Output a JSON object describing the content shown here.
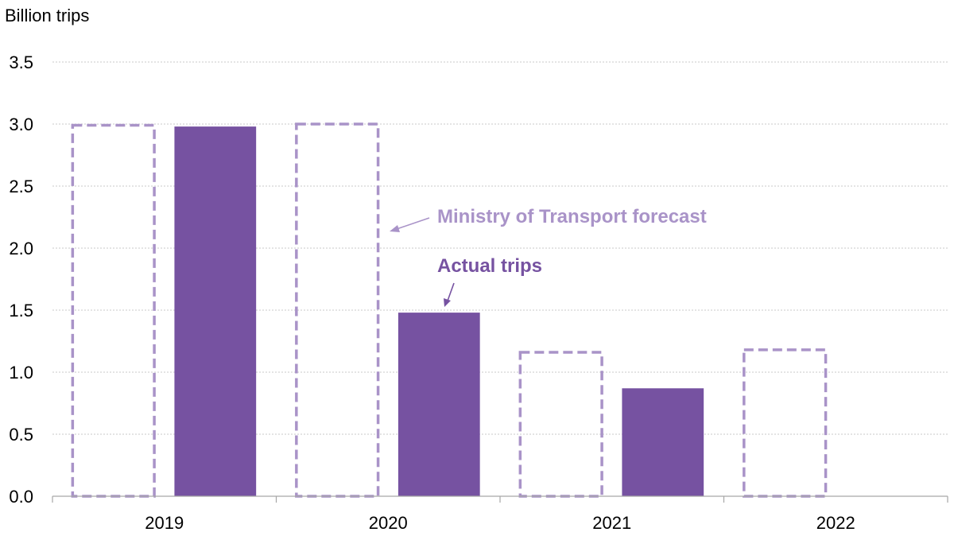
{
  "chart_data": {
    "type": "bar",
    "ylabel": "Billion trips",
    "ylim": [
      0,
      3.5
    ],
    "yticks": [
      "0.0",
      "0.5",
      "1.0",
      "1.5",
      "2.0",
      "2.5",
      "3.0",
      "3.5"
    ],
    "ytick_values": [
      0,
      0.5,
      1.0,
      1.5,
      2.0,
      2.5,
      3.0,
      3.5
    ],
    "grid": true,
    "categories": [
      "2019",
      "2020",
      "2021",
      "2022"
    ],
    "series": [
      {
        "name": "Ministry of Transport forecast",
        "style": "dashed-outline",
        "color": "#a993c8",
        "values": [
          2.99,
          3.0,
          1.16,
          1.18
        ]
      },
      {
        "name": "Actual trips",
        "style": "solid",
        "color": "#7652a1",
        "values": [
          2.98,
          1.48,
          0.87,
          null
        ]
      }
    ],
    "annotations": [
      {
        "text": "Ministry of Transport forecast",
        "color": "#a993c8"
      },
      {
        "text": "Actual trips",
        "color": "#7652a1"
      }
    ]
  }
}
